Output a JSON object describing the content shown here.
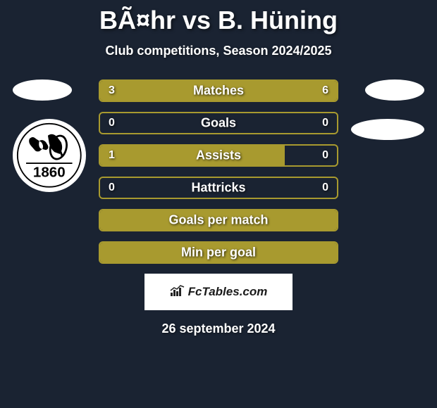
{
  "title": "BÃ¤hr vs B. Hüning",
  "subtitle": "Club competitions, Season 2024/2025",
  "date": "26 september 2024",
  "watermark": "FcTables.com",
  "colors": {
    "background": "#1a2332",
    "bar_fill": "#a89a2f",
    "bar_border": "#a89a2f",
    "text_white": "#ffffff"
  },
  "club_badge_left": {
    "year": "1860"
  },
  "stats": [
    {
      "label": "Matches",
      "left_value": "3",
      "right_value": "6",
      "left_pct": 33,
      "right_pct": 67,
      "show_values": true
    },
    {
      "label": "Goals",
      "left_value": "0",
      "right_value": "0",
      "left_pct": 0,
      "right_pct": 0,
      "show_values": true
    },
    {
      "label": "Assists",
      "left_value": "1",
      "right_value": "0",
      "left_pct": 78,
      "right_pct": 0,
      "show_values": true
    },
    {
      "label": "Hattricks",
      "left_value": "0",
      "right_value": "0",
      "left_pct": 0,
      "right_pct": 0,
      "show_values": true
    },
    {
      "label": "Goals per match",
      "left_value": "",
      "right_value": "",
      "left_pct": 100,
      "right_pct": 0,
      "show_values": false
    },
    {
      "label": "Min per goal",
      "left_value": "",
      "right_value": "",
      "left_pct": 100,
      "right_pct": 0,
      "show_values": false
    }
  ]
}
